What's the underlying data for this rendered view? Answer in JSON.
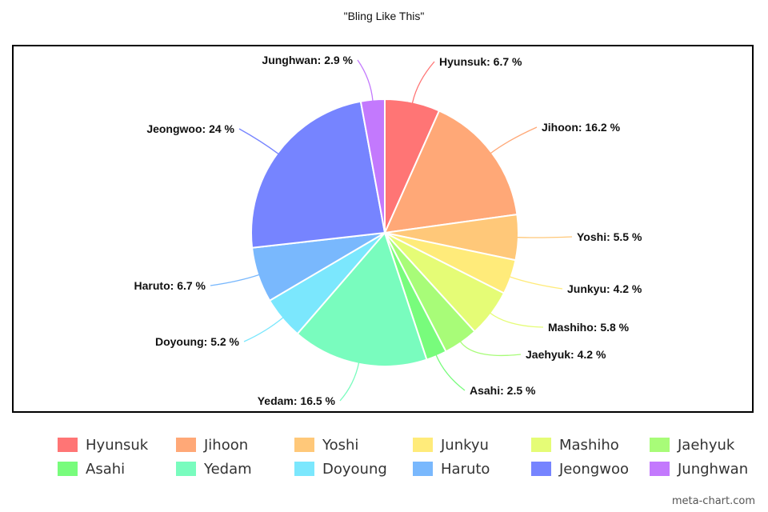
{
  "chart_data": {
    "type": "pie",
    "title": "\"Bling Like This\"",
    "unit": "%",
    "legend_position": "bottom",
    "slices": [
      {
        "name": "Hyunsuk",
        "label": "Hyunsuk: 6.7 %",
        "value": 6.7,
        "color": "#ff7575"
      },
      {
        "name": "Jihoon",
        "label": "Jihoon: 16.2 %",
        "value": 16.2,
        "color": "#ffa877"
      },
      {
        "name": "Yoshi",
        "label": "Yoshi: 5.5 %",
        "value": 5.5,
        "color": "#ffc879"
      },
      {
        "name": "Junkyu",
        "label": "Junkyu: 4.2 %",
        "value": 4.2,
        "color": "#ffeb7a"
      },
      {
        "name": "Mashiho",
        "label": "Mashiho: 5.8 %",
        "value": 5.8,
        "color": "#e5fc76"
      },
      {
        "name": "Jaehyuk",
        "label": "Jaehyuk: 4.2 %",
        "value": 4.2,
        "color": "#a8fc78"
      },
      {
        "name": "Asahi",
        "label": "Asahi: 2.5 %",
        "value": 2.5,
        "color": "#78fc7c"
      },
      {
        "name": "Yedam",
        "label": "Yedam: 16.5 %",
        "value": 16.5,
        "color": "#79fcbe"
      },
      {
        "name": "Doyoung",
        "label": "Doyoung: 5.2 %",
        "value": 5.2,
        "color": "#7be7fd"
      },
      {
        "name": "Haruto",
        "label": "Haruto: 6.7 %",
        "value": 6.7,
        "color": "#79b8fd"
      },
      {
        "name": "Jeongwoo",
        "label": "Jeongwoo: 24 %",
        "value": 24,
        "color": "#7684ff"
      },
      {
        "name": "Junghwan",
        "label": "Junghwan: 2.9 %",
        "value": 2.9,
        "color": "#c379fd"
      }
    ]
  },
  "footer": "meta-chart.com"
}
